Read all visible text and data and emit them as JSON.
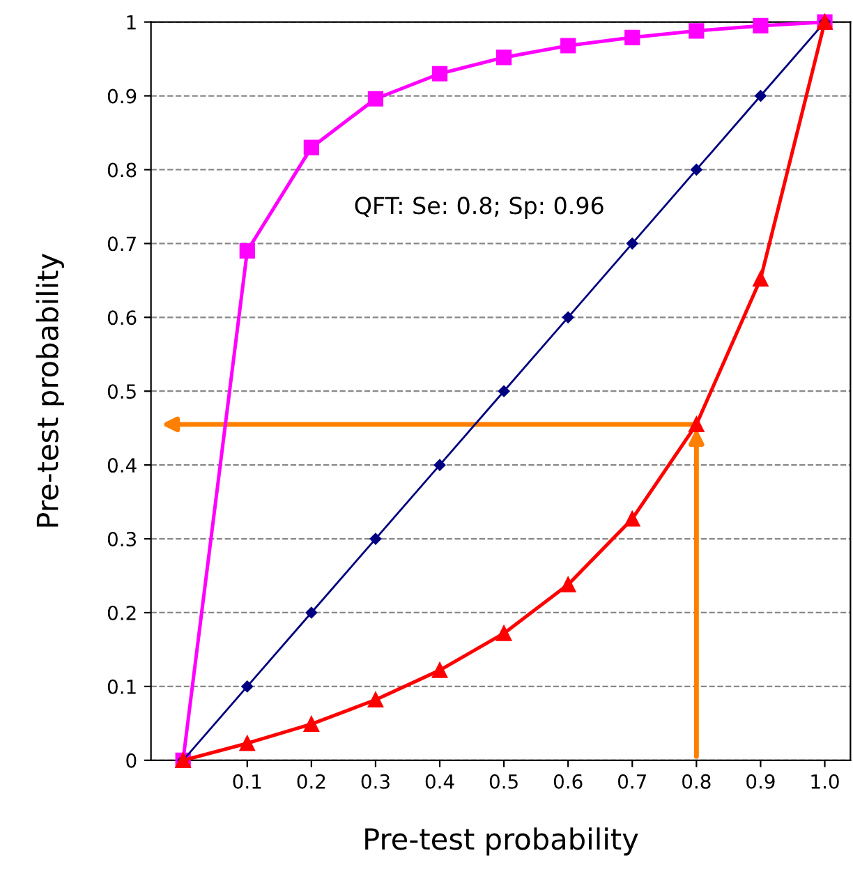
{
  "chart_data": {
    "type": "line",
    "xlabel": "Pre-test probability",
    "ylabel": "Pre-test probability",
    "annotations": [
      "QFT: Se: 0.8; Sp: 0.96"
    ],
    "x": [
      0,
      0.1,
      0.2,
      0.3,
      0.4,
      0.5,
      0.6,
      0.7,
      0.8,
      0.9,
      1.0
    ],
    "series": [
      {
        "color": "#ff00ff",
        "marker": "square",
        "values": [
          0,
          0.69,
          0.83,
          0.896,
          0.93,
          0.952,
          0.968,
          0.979,
          0.988,
          0.995,
          1
        ]
      },
      {
        "color": "#000080",
        "marker": "diamond",
        "values": [
          0,
          0.1,
          0.2,
          0.3,
          0.4,
          0.5,
          0.6,
          0.7,
          0.8,
          0.9,
          1
        ]
      },
      {
        "color": "#ff0000",
        "marker": "triangle",
        "values": [
          0,
          0.023,
          0.049,
          0.082,
          0.122,
          0.172,
          0.238,
          0.327,
          0.455,
          0.652,
          1
        ]
      }
    ],
    "xlim": [
      -0.05,
      1.04
    ],
    "ylim": [
      0,
      1
    ],
    "xticks": [
      {
        "value": 0,
        "label": null
      },
      0.1,
      0.2,
      0.3,
      0.4,
      0.5,
      0.6,
      0.7,
      0.8,
      0.9,
      {
        "value": 1.0,
        "label": "1.0"
      }
    ],
    "yticks": [
      0,
      0.1,
      0.2,
      0.3,
      0.4,
      0.5,
      0.6,
      0.7,
      0.8,
      0.9,
      1
    ],
    "grid": "y",
    "legend": false
  }
}
